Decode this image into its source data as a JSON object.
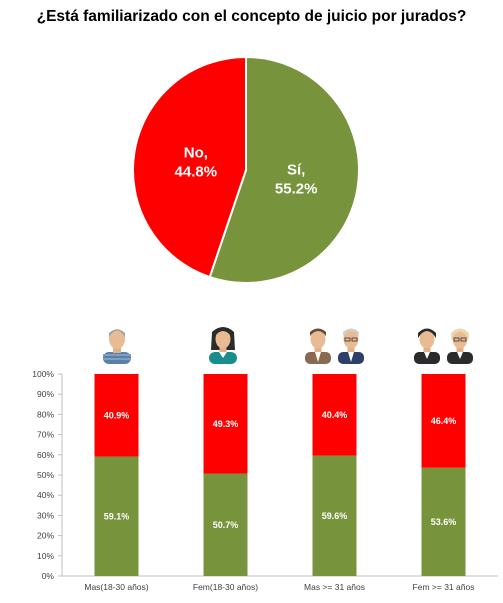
{
  "chart_data": [
    {
      "type": "pie",
      "title": "¿Está familiarizado con el concepto de juicio por jurados?",
      "slices": [
        {
          "label": "Sí,",
          "value": 55.2,
          "value_label": "55.2%",
          "color": "#77933C"
        },
        {
          "label": "No,",
          "value": 44.8,
          "value_label": "44.8%",
          "color": "#FF0000"
        }
      ]
    },
    {
      "type": "bar",
      "stacked": true,
      "percent": true,
      "categories": [
        "Mas(18-30 años)",
        "Fem(18-30 años)",
        "Mas >= 31 años",
        "Fem >= 31 años"
      ],
      "category_icons": [
        "young-man-icon",
        "young-woman-icon",
        "adult-men-icon",
        "adult-women-icon"
      ],
      "series": [
        {
          "values": [
            59.1,
            50.7,
            59.6,
            53.6
          ],
          "labels": [
            "59.1%",
            "50.7%",
            "59.6%",
            "53.6%"
          ],
          "color": "#77933C"
        },
        {
          "values": [
            40.9,
            49.3,
            40.4,
            46.4
          ],
          "labels": [
            "40.9%",
            "49.3%",
            "40.4%",
            "46.4%"
          ],
          "color": "#FF0000"
        }
      ],
      "ylim": [
        0,
        100
      ],
      "yticks": [
        "0%",
        "10%",
        "20%",
        "30%",
        "40%",
        "50%",
        "60%",
        "70%",
        "80%",
        "90%",
        "100%"
      ],
      "grid": false
    }
  ]
}
